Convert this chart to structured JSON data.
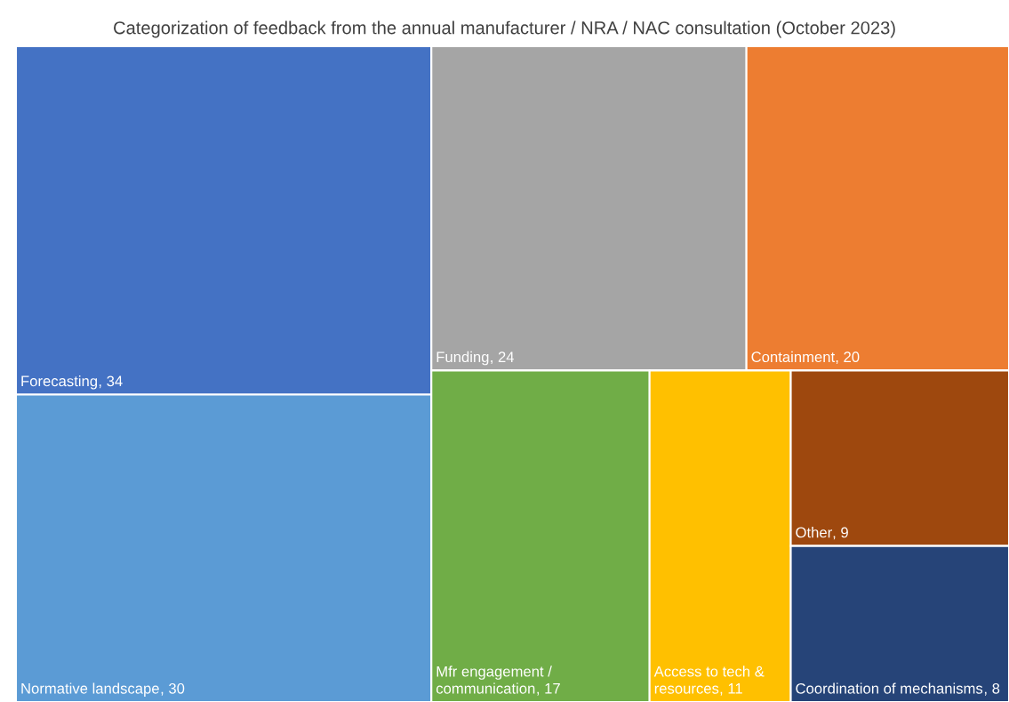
{
  "chart_data": {
    "type": "other",
    "title": "Categorization of feedback from the annual manufacturer / NRA / NAC consultation (October 2023)",
    "categories": [
      "Forecasting",
      "Normative landscape",
      "Funding",
      "Containment",
      "Mfr engagement / communication",
      "Access to tech & resources",
      "Other",
      "Coordination of mechanisms"
    ],
    "values": [
      34,
      30,
      24,
      20,
      17,
      11,
      9,
      8
    ],
    "colors": [
      "#4472c4",
      "#5b9bd5",
      "#a5a5a5",
      "#ed7d31",
      "#70ad47",
      "#ffc000",
      "#9e480e",
      "#264478"
    ],
    "value_labels": [
      ", 34",
      ", 30",
      ", 24",
      ", 20",
      ", 17",
      ", 11",
      ", 9",
      ", 8"
    ]
  }
}
